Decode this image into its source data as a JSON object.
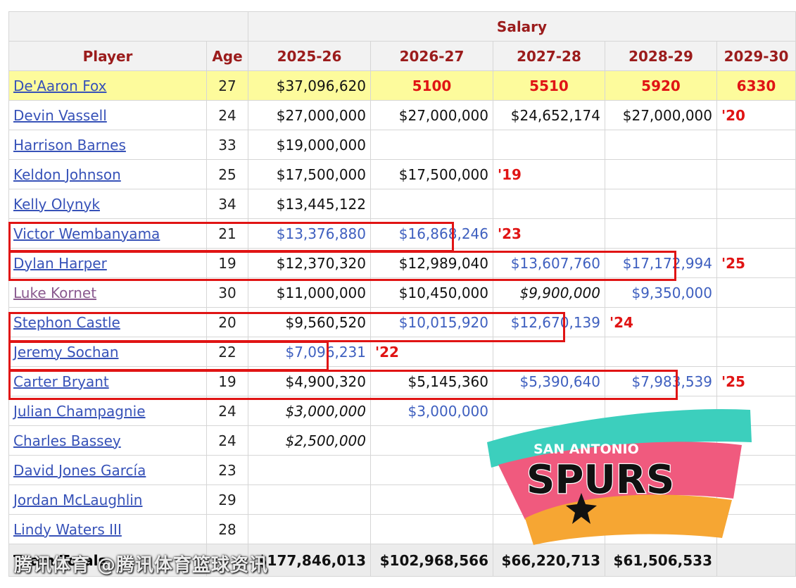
{
  "header": {
    "salary_label": "Salary",
    "player_label": "Player",
    "age_label": "Age",
    "years": [
      "2025-26",
      "2026-27",
      "2027-28",
      "2028-29",
      "2029-30"
    ]
  },
  "rows": [
    {
      "name": "De'Aaron Fox",
      "age": "27",
      "s1": "$37,096,620",
      "s2": "5100",
      "s3": "5510",
      "s4": "5920",
      "s5": "6330"
    },
    {
      "name": "Devin Vassell",
      "age": "24",
      "s1": "$27,000,000",
      "s2": "$27,000,000",
      "s3": "$24,652,174",
      "s4": "$27,000,000",
      "s5": "'20"
    },
    {
      "name": "Harrison Barnes",
      "age": "33",
      "s1": "$19,000,000",
      "s2": "",
      "s3": "",
      "s4": "",
      "s5": ""
    },
    {
      "name": "Keldon Johnson",
      "age": "25",
      "s1": "$17,500,000",
      "s2": "$17,500,000",
      "s3": "'19",
      "s4": "",
      "s5": ""
    },
    {
      "name": "Kelly Olynyk",
      "age": "34",
      "s1": "$13,445,122",
      "s2": "",
      "s3": "",
      "s4": "",
      "s5": ""
    },
    {
      "name": "Victor Wembanyama",
      "age": "21",
      "s1": "$13,376,880",
      "s2": "$16,868,246",
      "s3": "'23",
      "s4": "",
      "s5": ""
    },
    {
      "name": "Dylan Harper",
      "age": "19",
      "s1": "$12,370,320",
      "s2": "$12,989,040",
      "s3": "$13,607,760",
      "s4": "$17,172,994",
      "s5": "'25"
    },
    {
      "name": "Luke Kornet",
      "age": "30",
      "s1": "$11,000,000",
      "s2": "$10,450,000",
      "s3": "$9,900,000",
      "s4": "$9,350,000",
      "s5": ""
    },
    {
      "name": "Stephon Castle",
      "age": "20",
      "s1": "$9,560,520",
      "s2": "$10,015,920",
      "s3": "$12,670,139",
      "s4": "'24",
      "s5": ""
    },
    {
      "name": "Jeremy Sochan",
      "age": "22",
      "s1": "$7,096,231",
      "s2": "'22",
      "s3": "",
      "s4": "",
      "s5": ""
    },
    {
      "name": "Carter Bryant",
      "age": "19",
      "s1": "$4,900,320",
      "s2": "$5,145,360",
      "s3": "$5,390,640",
      "s4": "$7,983,539",
      "s5": "'25"
    },
    {
      "name": "Julian Champagnie",
      "age": "24",
      "s1": "$3,000,000",
      "s2": "$3,000,000",
      "s3": "",
      "s4": "",
      "s5": ""
    },
    {
      "name": "Charles Bassey",
      "age": "24",
      "s1": "$2,500,000",
      "s2": "",
      "s3": "",
      "s4": "",
      "s5": ""
    },
    {
      "name": "David Jones García",
      "age": "23",
      "s1": "",
      "s2": "",
      "s3": "",
      "s4": "",
      "s5": ""
    },
    {
      "name": "Jordan McLaughlin",
      "age": "29",
      "s1": "",
      "s2": "",
      "s3": "",
      "s4": "",
      "s5": ""
    },
    {
      "name": "Lindy Waters III",
      "age": "28",
      "s1": "",
      "s2": "",
      "s3": "",
      "s4": "",
      "s5": ""
    }
  ],
  "totals": {
    "label": "Team Totals",
    "s1": "$177,846,013",
    "s2": "$102,968,566",
    "s3": "$66,220,713",
    "s4": "$61,506,533",
    "s5": ""
  },
  "logo": {
    "line1": "SAN ANTONIO",
    "line2": "SPURS"
  },
  "watermark": "腾讯体育 @腾讯体育篮球资讯",
  "colors": {
    "header_text": "#9b1c1c",
    "link": "#3752b8",
    "highlight_row": "#fdfb9c",
    "annotation_red": "#e01414",
    "rookie_blue": "#3e5fbf"
  }
}
